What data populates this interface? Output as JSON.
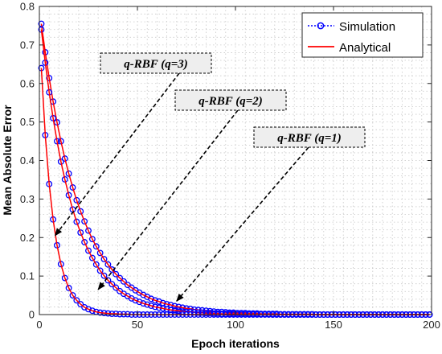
{
  "chart_data": {
    "type": "line",
    "xlabel": "Epoch iterations",
    "ylabel": "Mean Absolute Error",
    "xlim": [
      0,
      200
    ],
    "ylim": [
      0,
      0.8
    ],
    "xticks": [
      0,
      50,
      100,
      150,
      200
    ],
    "yticks": [
      0,
      0.1,
      0.2,
      0.3,
      0.4,
      0.5,
      0.6,
      0.7,
      0.8
    ],
    "xtick_labels": [
      "0",
      "50",
      "100",
      "150",
      "200"
    ],
    "ytick_labels": [
      "0",
      "0.1",
      "0.2",
      "0.3",
      "0.4",
      "0.5",
      "0.6",
      "0.7",
      "0.8"
    ],
    "grid": true,
    "legend_position": "top-right",
    "legend": [
      "Simulation",
      "Analytical"
    ],
    "colors": {
      "simulation": "#0000ff",
      "analytical": "#ff0000"
    },
    "x": [
      1,
      3,
      5,
      7,
      9,
      11,
      13,
      15,
      17,
      19,
      21,
      23,
      25,
      27,
      29,
      31,
      33,
      35,
      37,
      39,
      41,
      43,
      45,
      47,
      49,
      51,
      53,
      55,
      57,
      59,
      61,
      63,
      65,
      67,
      69,
      71,
      73,
      75,
      77,
      79,
      81,
      83,
      85,
      87,
      89,
      91,
      93,
      95,
      97,
      99,
      101,
      103,
      105,
      107,
      109,
      111,
      113,
      115,
      117,
      119,
      121,
      123,
      125,
      127,
      129,
      131,
      133,
      135,
      137,
      139,
      141,
      143,
      145,
      147,
      149,
      151,
      153,
      155,
      157,
      159,
      161,
      163,
      165,
      167,
      169,
      171,
      173,
      175,
      177,
      179,
      181,
      183,
      185,
      187,
      189,
      191,
      193,
      195,
      197,
      199
    ],
    "series": [
      {
        "annotation_id": "q1",
        "values": [
          0.755,
          0.681,
          0.614,
          0.553,
          0.499,
          0.45,
          0.405,
          0.366,
          0.33,
          0.297,
          0.268,
          0.242,
          0.218,
          0.196,
          0.177,
          0.16,
          0.144,
          0.13,
          0.117,
          0.105,
          0.095,
          0.086,
          0.077,
          0.07,
          0.063,
          0.057,
          0.051,
          0.046,
          0.041,
          0.037,
          0.034,
          0.03,
          0.027,
          0.025,
          0.022,
          0.02,
          0.018,
          0.016,
          0.015,
          0.013,
          0.012,
          0.011,
          0.01,
          0.009,
          0.008,
          0.007,
          0.007,
          0.006,
          0.005,
          0.005,
          0.004,
          0.004,
          0.004,
          0.003,
          0.003,
          0.003,
          0.002,
          0.002,
          0.002,
          0.002,
          0.002,
          0.001,
          0.001,
          0.001,
          0.001,
          0.001,
          0.001,
          0.001,
          0.001,
          0.001,
          0.0,
          0.0,
          0.0,
          0.0,
          0.0,
          0.0,
          0.0,
          0.0,
          0.0,
          0.0,
          0.0,
          0.0,
          0.0,
          0.0,
          0.0,
          0.0,
          0.0,
          0.0,
          0.0,
          0.0,
          0.0,
          0.0,
          0.0,
          0.0,
          0.0,
          0.0,
          0.0,
          0.0,
          0.0,
          0.0
        ]
      },
      {
        "annotation_id": "q2",
        "values": [
          0.74,
          0.654,
          0.577,
          0.51,
          0.45,
          0.397,
          0.351,
          0.31,
          0.273,
          0.241,
          0.213,
          0.188,
          0.166,
          0.147,
          0.13,
          0.114,
          0.101,
          0.089,
          0.079,
          0.07,
          0.061,
          0.054,
          0.048,
          0.042,
          0.037,
          0.033,
          0.029,
          0.026,
          0.023,
          0.02,
          0.018,
          0.016,
          0.014,
          0.012,
          0.011,
          0.01,
          0.008,
          0.007,
          0.007,
          0.006,
          0.005,
          0.005,
          0.004,
          0.004,
          0.003,
          0.003,
          0.002,
          0.002,
          0.002,
          0.002,
          0.001,
          0.001,
          0.001,
          0.001,
          0.001,
          0.001,
          0.001,
          0.001,
          0.001,
          0.0,
          0.0,
          0.0,
          0.0,
          0.0,
          0.0,
          0.0,
          0.0,
          0.0,
          0.0,
          0.0,
          0.0,
          0.0,
          0.0,
          0.0,
          0.0,
          0.0,
          0.0,
          0.0,
          0.0,
          0.0,
          0.0,
          0.0,
          0.0,
          0.0,
          0.0,
          0.0,
          0.0,
          0.0,
          0.0,
          0.0,
          0.0,
          0.0,
          0.0,
          0.0,
          0.0,
          0.0,
          0.0,
          0.0,
          0.0,
          0.0
        ]
      },
      {
        "annotation_id": "q3",
        "values": [
          0.64,
          0.466,
          0.339,
          0.247,
          0.18,
          0.131,
          0.095,
          0.069,
          0.05,
          0.037,
          0.027,
          0.019,
          0.014,
          0.01,
          0.007,
          0.005,
          0.004,
          0.003,
          0.002,
          0.002,
          0.001,
          0.001,
          0.001,
          0.0,
          0.0,
          0.0,
          0.0,
          0.0,
          0.0,
          0.0,
          0.0,
          0.0,
          0.0,
          0.0,
          0.0,
          0.0,
          0.0,
          0.0,
          0.0,
          0.0,
          0.0,
          0.0,
          0.0,
          0.0,
          0.0,
          0.0,
          0.0,
          0.0,
          0.0,
          0.0,
          0.0,
          0.0,
          0.0,
          0.0,
          0.0,
          0.0,
          0.0,
          0.0,
          0.0,
          0.0,
          0.0,
          0.0,
          0.0,
          0.0,
          0.0,
          0.0,
          0.0,
          0.0,
          0.0,
          0.0,
          0.0,
          0.0,
          0.0,
          0.0,
          0.0,
          0.0,
          0.0,
          0.0,
          0.0,
          0.0,
          0.0,
          0.0,
          0.0,
          0.0,
          0.0,
          0.0,
          0.0,
          0.0,
          0.0,
          0.0,
          0.0,
          0.0,
          0.0,
          0.0,
          0.0,
          0.0,
          0.0,
          0.0,
          0.0,
          0.0
        ]
      }
    ],
    "annotations": [
      {
        "id": "q3",
        "text": "q-RBF (q=3)",
        "target": [
          8,
          0.205
        ]
      },
      {
        "id": "q2",
        "text": "q-RBF (q=2)",
        "target": [
          30,
          0.065
        ]
      },
      {
        "id": "q1",
        "text": "q-RBF (q=1)",
        "target": [
          70,
          0.035
        ]
      }
    ]
  }
}
